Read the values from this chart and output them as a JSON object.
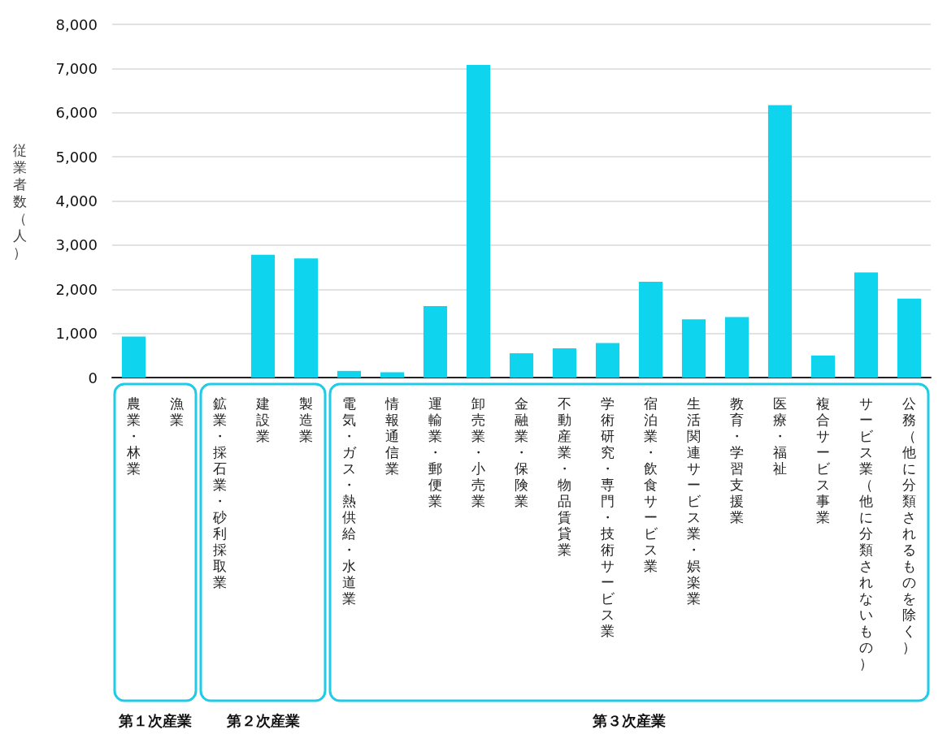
{
  "chart_data": {
    "type": "bar",
    "ylabel": "従業者数（人）",
    "categories": [
      "農業・林業",
      "漁業",
      "鉱業・採石業・砂利採取業",
      "建設業",
      "製造業",
      "電気・ガス・熱供給・水道業",
      "情報通信業",
      "運輸業・郵便業",
      "卸売業・小売業",
      "金融業・保険業",
      "不動産業・物品賃貸業",
      "学術研究・専門・技術サービス業",
      "宿泊業・飲食サービス業",
      "生活関連サービス業・娯楽業",
      "教育・学習支援業",
      "医療・福祉",
      "複合サービス事業",
      "サービス業（他に分類されないもの）",
      "公務（他に分類されるものを除く）"
    ],
    "values": [
      930,
      0,
      0,
      2780,
      2700,
      150,
      120,
      1620,
      7080,
      550,
      660,
      780,
      2170,
      1320,
      1370,
      6170,
      500,
      2380,
      1790
    ],
    "color": "#0fd4ee",
    "ylim": [
      0,
      8000
    ],
    "yticks": [
      0,
      {
        "value": 1000,
        "label": "1,000"
      },
      {
        "value": 2000,
        "label": "2,000"
      },
      {
        "value": 3000,
        "label": "3,000"
      },
      {
        "value": 4000,
        "label": "4,000"
      },
      {
        "value": 5000,
        "label": "5,000"
      },
      {
        "value": 6000,
        "label": "6,000"
      },
      {
        "value": 7000,
        "label": "7,000"
      },
      {
        "value": 8000,
        "label": "8,000"
      }
    ],
    "grid": "y",
    "annotations": [
      "第１次産業",
      "第２次産業",
      "第３次産業"
    ]
  }
}
